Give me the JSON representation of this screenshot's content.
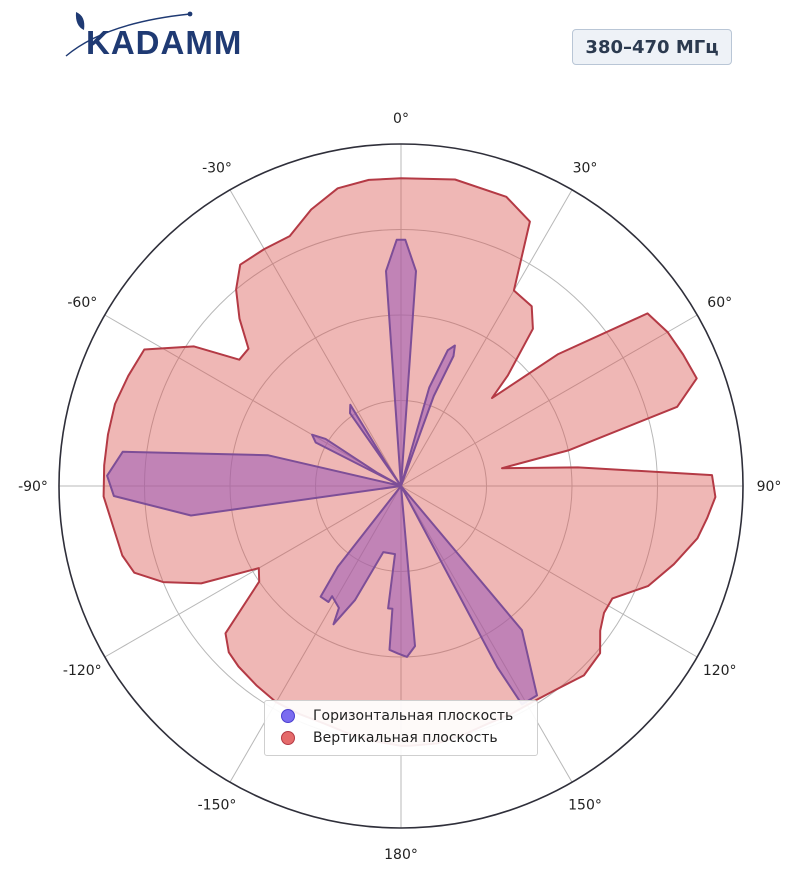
{
  "brand": {
    "logo_text": "KADAMM",
    "colors": {
      "primary": "#1f3a73"
    }
  },
  "band_label": "380–470 МГц",
  "chart_data": {
    "type": "polar",
    "theta_labels": [
      "0°",
      "30°",
      "60°",
      "90°",
      "120°",
      "150°",
      "180°",
      "-150°",
      "-120°",
      "-90°",
      "-60°",
      "-30°"
    ],
    "theta_ticks_deg": [
      0,
      30,
      60,
      90,
      120,
      150,
      180,
      -150,
      -120,
      -90,
      -60,
      -30
    ],
    "r_max": 1.0,
    "r_grid": [
      0.25,
      0.5,
      0.75
    ],
    "legend": {
      "position": "bottom-center"
    },
    "series": [
      {
        "name": "Вертикальная плоскость",
        "color": "#d9534f",
        "edge": "#b43a45",
        "points": [
          [
            0,
            0.9
          ],
          [
            10,
            0.91
          ],
          [
            20,
            0.9
          ],
          [
            26,
            0.86
          ],
          [
            30,
            0.66
          ],
          [
            36,
            0.65
          ],
          [
            40,
            0.6
          ],
          [
            44,
            0.45
          ],
          [
            46,
            0.37
          ],
          [
            50,
            0.6
          ],
          [
            55,
            0.88
          ],
          [
            60,
            0.9
          ],
          [
            65,
            0.91
          ],
          [
            70,
            0.92
          ],
          [
            74,
            0.84
          ],
          [
            78,
            0.5
          ],
          [
            80,
            0.3
          ],
          [
            84,
            0.52
          ],
          [
            88,
            0.91
          ],
          [
            92,
            0.92
          ],
          [
            96,
            0.9
          ],
          [
            100,
            0.88
          ],
          [
            106,
            0.83
          ],
          [
            112,
            0.78
          ],
          [
            118,
            0.7
          ],
          [
            122,
            0.7
          ],
          [
            126,
            0.72
          ],
          [
            130,
            0.76
          ],
          [
            136,
            0.77
          ],
          [
            142,
            0.75
          ],
          [
            148,
            0.74
          ],
          [
            154,
            0.74
          ],
          [
            160,
            0.74
          ],
          [
            166,
            0.75
          ],
          [
            172,
            0.76
          ],
          [
            178,
            0.76
          ],
          [
            180,
            0.76
          ],
          [
            186,
            0.75
          ],
          [
            192,
            0.74
          ],
          [
            198,
            0.73
          ],
          [
            204,
            0.73
          ],
          [
            210,
            0.73
          ],
          [
            216,
            0.72
          ],
          [
            222,
            0.71
          ],
          [
            226,
            0.7
          ],
          [
            230,
            0.67
          ],
          [
            236,
            0.5
          ],
          [
            240,
            0.48
          ],
          [
            244,
            0.65
          ],
          [
            248,
            0.75
          ],
          [
            252,
            0.82
          ],
          [
            256,
            0.84
          ],
          [
            262,
            0.85
          ],
          [
            268,
            0.87
          ],
          [
            274,
            0.87
          ],
          [
            280,
            0.87
          ],
          [
            286,
            0.87
          ],
          [
            292,
            0.86
          ],
          [
            298,
            0.85
          ],
          [
            304,
            0.73
          ],
          [
            308,
            0.6
          ],
          [
            312,
            0.6
          ],
          [
            316,
            0.68
          ],
          [
            320,
            0.75
          ],
          [
            324,
            0.8
          ],
          [
            330,
            0.8
          ],
          [
            336,
            0.8
          ],
          [
            342,
            0.85
          ],
          [
            348,
            0.89
          ],
          [
            354,
            0.9
          ],
          [
            360,
            0.9
          ]
        ]
      },
      {
        "name": "Горизонтальная плоскость",
        "color": "#9b59b6",
        "edge": "#7d4e97",
        "points": [
          [
            -12,
            0
          ],
          [
            -4,
            0.63
          ],
          [
            -1,
            0.72
          ],
          [
            0,
            0.72
          ],
          [
            1,
            0.72
          ],
          [
            4,
            0.63
          ],
          [
            12,
            0
          ],
          [
            16,
            0.3
          ],
          [
            19,
            0.42
          ],
          [
            21,
            0.44
          ],
          [
            22,
            0.41
          ],
          [
            20,
            0.28
          ],
          [
            12,
            0
          ],
          [
            126,
            0
          ],
          [
            140,
            0.55
          ],
          [
            147,
            0.73
          ],
          [
            151,
            0.73
          ],
          [
            152,
            0.6
          ],
          [
            154,
            0
          ],
          [
            170,
            0
          ],
          [
            175,
            0.47
          ],
          [
            178,
            0.5
          ],
          [
            181,
            0.49
          ],
          [
            184,
            0.48
          ],
          [
            184,
            0.36
          ],
          [
            186,
            0.36
          ],
          [
            185,
            0.2
          ],
          [
            195,
            0.2
          ],
          [
            202,
            0.36
          ],
          [
            206,
            0.45
          ],
          [
            207,
            0.4
          ],
          [
            212,
            0.38
          ],
          [
            212,
            0.4
          ],
          [
            216,
            0.4
          ],
          [
            218,
            0.3
          ],
          [
            230,
            0
          ],
          [
            262,
            0.62
          ],
          [
            268,
            0.84
          ],
          [
            272,
            0.86
          ],
          [
            277,
            0.82
          ],
          [
            283,
            0.4
          ],
          [
            293,
            0
          ],
          [
            297,
            0.28
          ],
          [
            300,
            0.3
          ],
          [
            302,
            0.26
          ],
          [
            299,
            0.08
          ],
          [
            300,
            0
          ],
          [
            325,
            0.26
          ],
          [
            328,
            0.28
          ],
          [
            327,
            0.08
          ],
          [
            340,
            0
          ],
          [
            348,
            0
          ]
        ]
      }
    ]
  }
}
